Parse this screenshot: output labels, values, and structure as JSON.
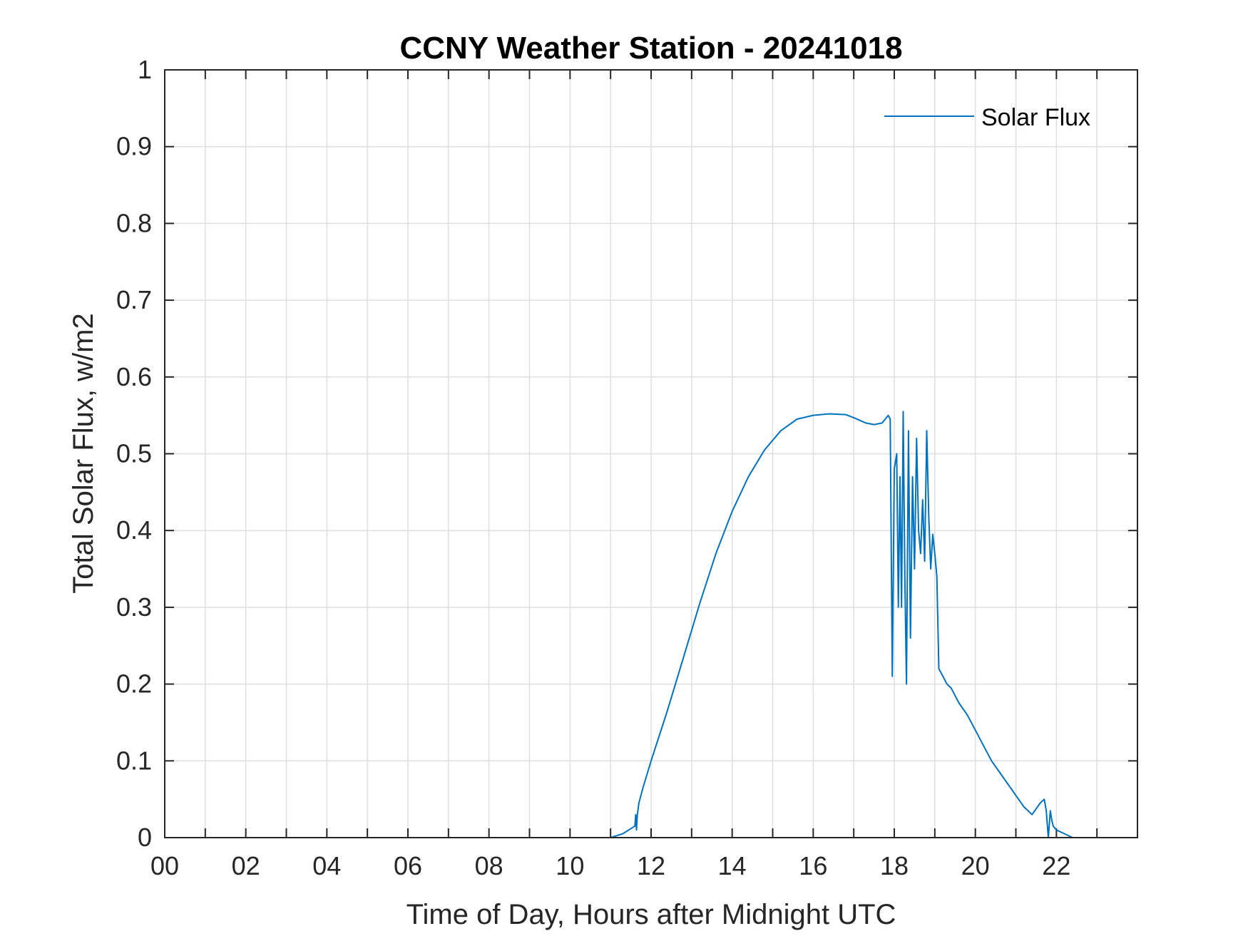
{
  "chart_data": {
    "type": "line",
    "title": "CCNY Weather Station - 20241018",
    "xlabel": "Time of Day, Hours after Midnight UTC",
    "ylabel": "Total Solar Flux, w/m2",
    "xlim": [
      0,
      24
    ],
    "ylim": [
      0,
      1
    ],
    "grid": true,
    "legend_position": "top-right",
    "x_ticks": [
      0,
      2,
      4,
      6,
      8,
      10,
      12,
      14,
      16,
      18,
      20,
      22
    ],
    "x_tick_labels": [
      "00",
      "02",
      "04",
      "06",
      "08",
      "10",
      "12",
      "14",
      "16",
      "18",
      "20",
      "22"
    ],
    "y_ticks": [
      0,
      0.1,
      0.2,
      0.3,
      0.4,
      0.5,
      0.6,
      0.7,
      0.8,
      0.9,
      1
    ],
    "y_tick_labels": [
      "0",
      "0.1",
      "0.2",
      "0.3",
      "0.4",
      "0.5",
      "0.6",
      "0.7",
      "0.8",
      "0.9",
      "1"
    ],
    "series": [
      {
        "name": "Solar Flux",
        "color": "#0072BD",
        "x": [
          0,
          11.0,
          11.3,
          11.6,
          11.62,
          11.64,
          11.66,
          11.7,
          11.8,
          12.0,
          12.4,
          12.8,
          13.2,
          13.6,
          14.0,
          14.4,
          14.8,
          15.2,
          15.6,
          16.0,
          16.4,
          16.8,
          17.0,
          17.3,
          17.5,
          17.7,
          17.85,
          17.9,
          17.95,
          18.0,
          18.03,
          18.06,
          18.1,
          18.14,
          18.18,
          18.22,
          18.26,
          18.3,
          18.35,
          18.4,
          18.45,
          18.5,
          18.55,
          18.6,
          18.65,
          18.7,
          18.75,
          18.8,
          18.85,
          18.9,
          18.95,
          19.0,
          19.05,
          19.1,
          19.15,
          19.2,
          19.3,
          19.4,
          19.5,
          19.6,
          19.8,
          20.0,
          20.2,
          20.4,
          20.6,
          20.8,
          21.0,
          21.2,
          21.4,
          21.6,
          21.7,
          21.75,
          21.8,
          21.85,
          21.88,
          21.9,
          21.92,
          22.0,
          22.2,
          22.4,
          22.6,
          24.0
        ],
        "y": [
          0,
          0,
          0.005,
          0.015,
          0.03,
          0.01,
          0.03,
          0.045,
          0.065,
          0.1,
          0.165,
          0.235,
          0.305,
          0.37,
          0.425,
          0.47,
          0.505,
          0.53,
          0.545,
          0.55,
          0.552,
          0.551,
          0.547,
          0.54,
          0.538,
          0.54,
          0.55,
          0.545,
          0.21,
          0.48,
          0.49,
          0.5,
          0.3,
          0.47,
          0.3,
          0.555,
          0.34,
          0.2,
          0.53,
          0.26,
          0.47,
          0.35,
          0.52,
          0.4,
          0.37,
          0.44,
          0.36,
          0.53,
          0.42,
          0.35,
          0.395,
          0.37,
          0.34,
          0.22,
          0.215,
          0.21,
          0.2,
          0.195,
          0.185,
          0.175,
          0.16,
          0.14,
          0.12,
          0.1,
          0.085,
          0.07,
          0.055,
          0.04,
          0.03,
          0.045,
          0.05,
          0.035,
          0.0,
          0.035,
          0.025,
          0.02,
          0.015,
          0.01,
          0.005,
          0.0,
          0.0,
          0
        ]
      }
    ]
  }
}
